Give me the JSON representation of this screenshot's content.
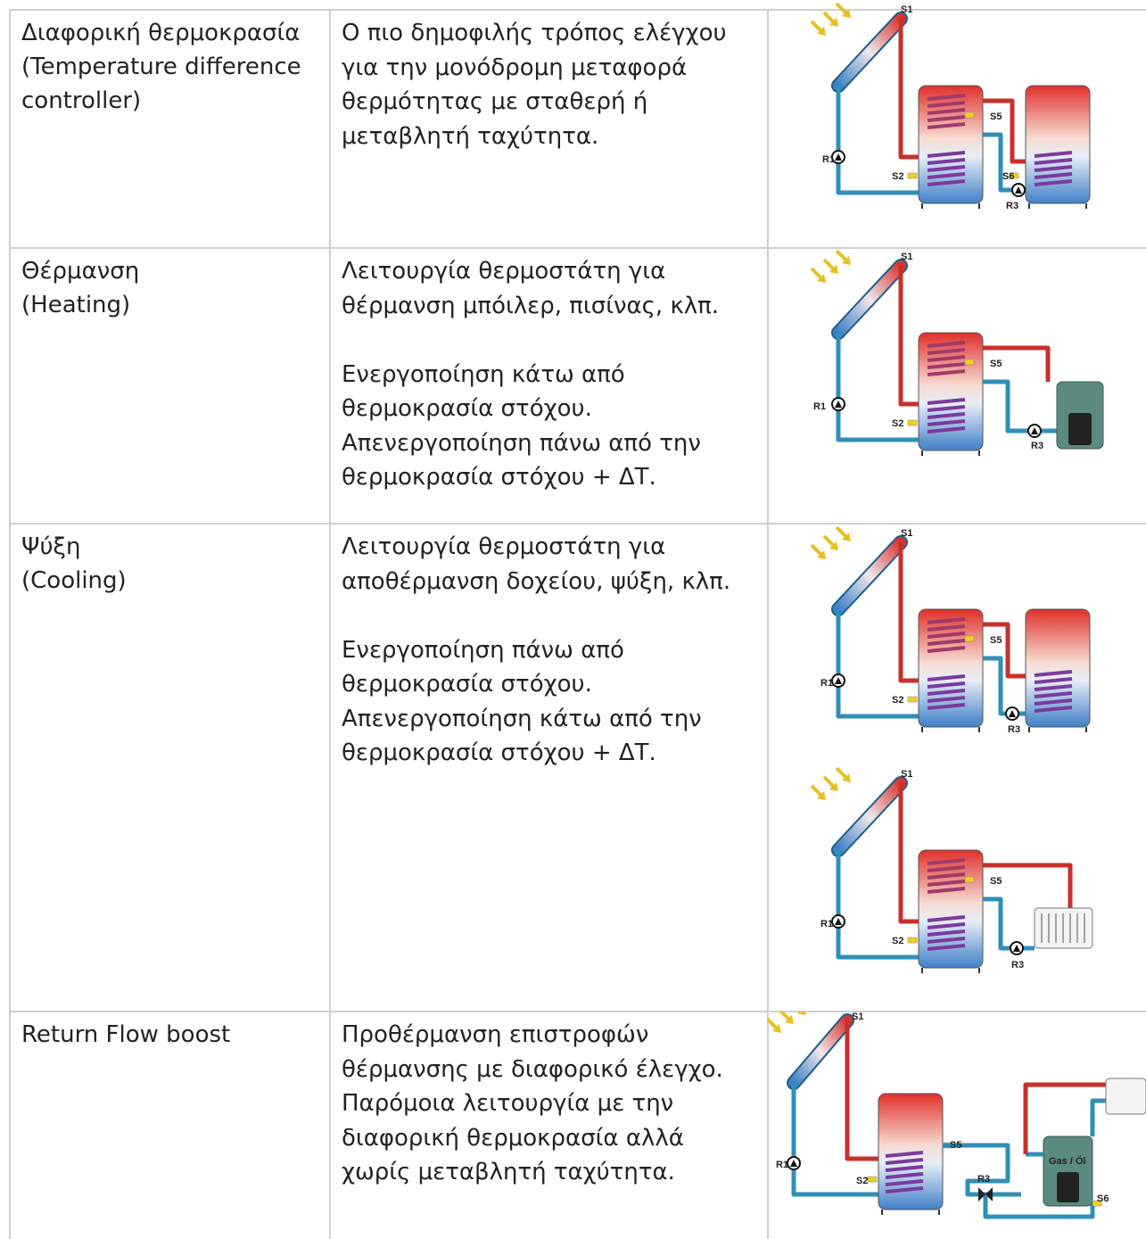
{
  "table": {
    "rows": [
      {
        "mode": [
          "Διαφορική θερμοκρασία",
          "(Temperature difference",
          "controller)"
        ],
        "description": [
          [
            "Ο πιο δημοφιλής τρόπος ελέγχου",
            "για την μονόδρομη μεταφορά",
            "θερμότητας με σταθερή ή",
            "μεταβλητή ταχύτητα."
          ]
        ],
        "diagrams": [
          {
            "labels": [
              "S1",
              "S5",
              "R1",
              "S2",
              "S6",
              "R3"
            ]
          }
        ]
      },
      {
        "mode": [
          "Θέρμανση",
          "(Heating)"
        ],
        "description": [
          [
            "Λειτουργία θερμοστάτη για",
            "θέρμανση μπόιλερ, πισίνας, κλπ."
          ],
          [
            "Ενεργοποίηση κάτω από",
            "θερμοκρασία στόχου.",
            "Απενεργοποίηση πάνω από την",
            "θερμοκρασία στόχου + ΔΤ."
          ]
        ],
        "diagrams": [
          {
            "labels": [
              "S1",
              "S5",
              "R1",
              "S2",
              "R3"
            ]
          }
        ]
      },
      {
        "mode": [
          "Ψύξη",
          "(Cooling)"
        ],
        "description": [
          [
            "Λειτουργία θερμοστάτη για",
            "αποθέρμανση δοχείου, ψύξη, κλπ."
          ],
          [
            "Ενεργοποίηση πάνω από",
            "θερμοκρασία στόχου.",
            "Απενεργοποίηση κάτω από την",
            "θερμοκρασία στόχου + ΔΤ."
          ]
        ],
        "diagrams": [
          {
            "labels": [
              "S1",
              "S5",
              "R1",
              "S2",
              "R3"
            ]
          },
          {
            "labels": [
              "S1",
              "S5",
              "R1",
              "S2",
              "R3"
            ]
          }
        ]
      },
      {
        "mode": [
          "Return Flow boost"
        ],
        "description": [
          [
            "Προθέρμανση επιστροφών",
            "θέρμανσης με διαφορικό έλεγχο.",
            "Παρόμοια λειτουργία με την",
            "διαφορική θερμοκρασία αλλά",
            "χωρίς μεταβλητή ταχύτητα."
          ]
        ],
        "diagrams": [
          {
            "labels": [
              "S1",
              "S5",
              "R1",
              "S2",
              "R3",
              "Gas / Öl",
              "S6"
            ]
          }
        ]
      }
    ]
  }
}
